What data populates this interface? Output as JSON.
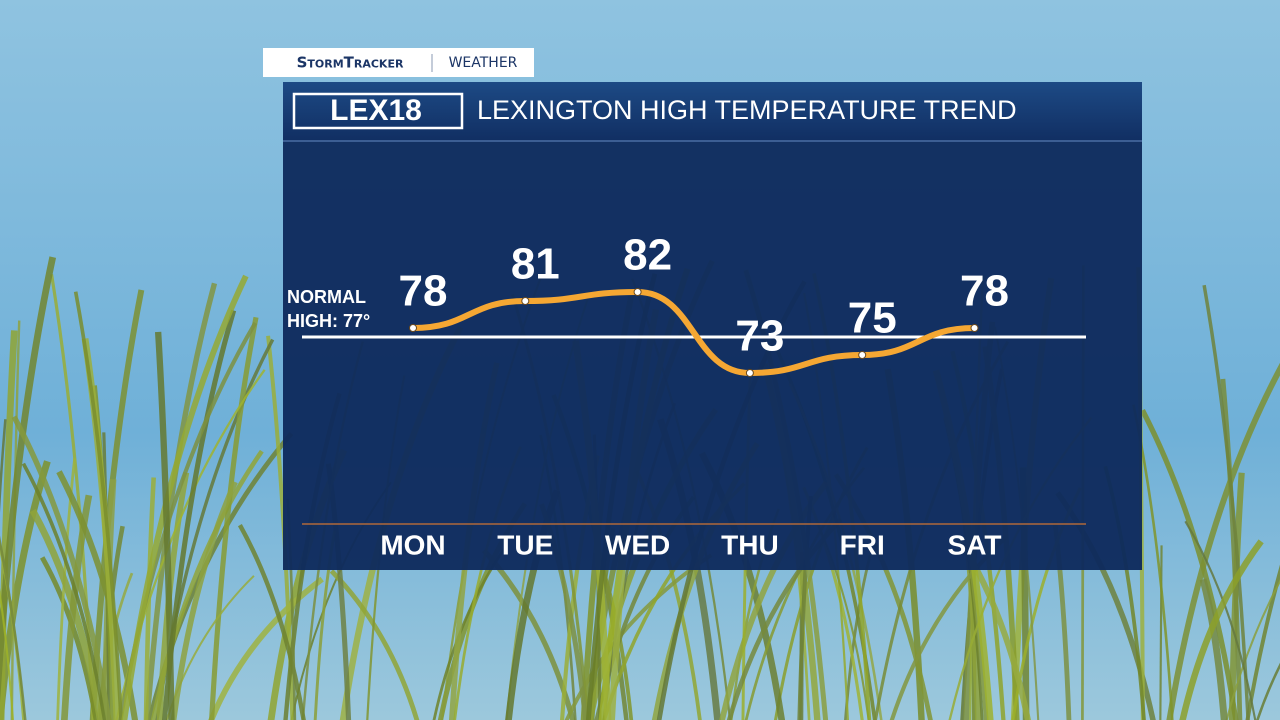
{
  "header": {
    "brand": "StormTracker",
    "section": "WEATHER",
    "logo": "LEX18"
  },
  "chart_data": {
    "type": "line",
    "title": "LEXINGTON HIGH TEMPERATURE TREND",
    "categories": [
      "MON",
      "TUE",
      "WED",
      "THU",
      "FRI",
      "SAT"
    ],
    "values": [
      78,
      81,
      82,
      73,
      75,
      78
    ],
    "color": "#f5a733",
    "reference": {
      "value": 77,
      "label": [
        "NORMAL",
        "HIGH: 77°"
      ]
    }
  }
}
